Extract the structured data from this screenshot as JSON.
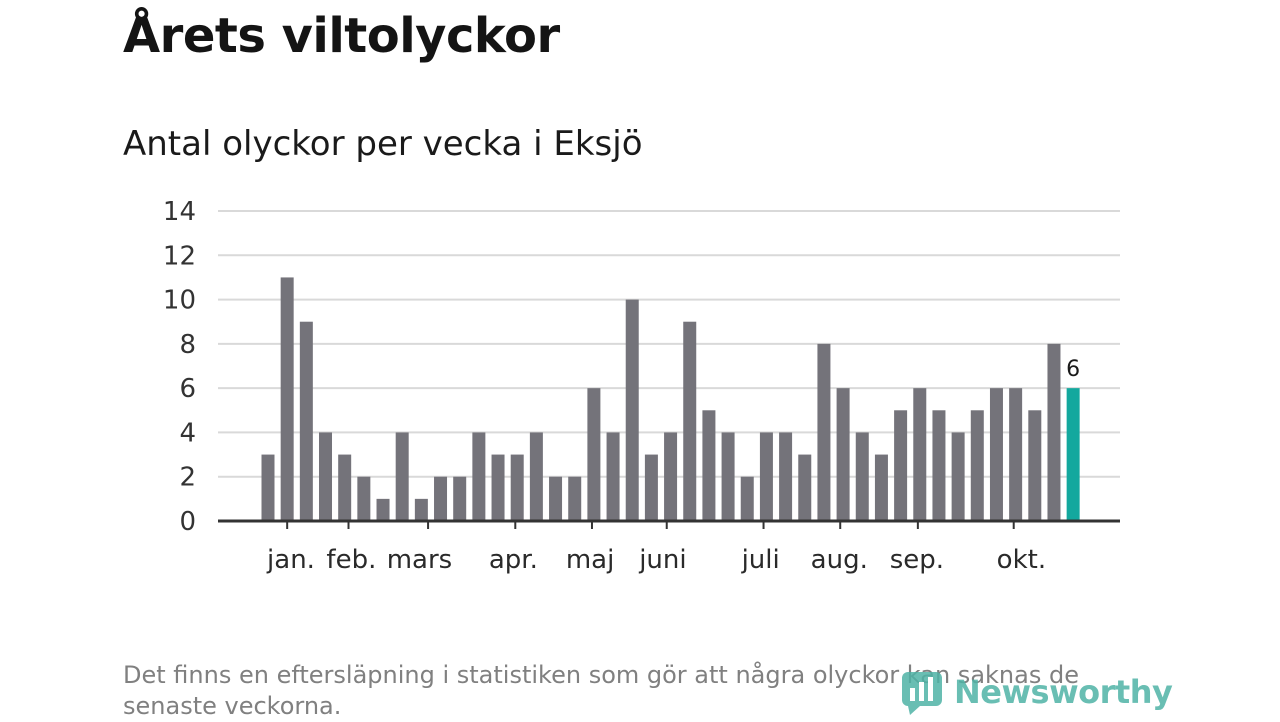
{
  "title": "Årets viltolyckor",
  "subtitle": "Antal olyckor per vecka i Eksjö",
  "footnote": "Det finns en eftersläpning i statistiken som gör att några olyckor kan saknas de senaste veckorna.",
  "brand": {
    "name": "Newsworthy",
    "icon": "newsworthy-logo-icon"
  },
  "colors": {
    "bar": "#74737a",
    "highlight": "#13a89e",
    "grid": "#d9d9d9",
    "axis": "#333333"
  },
  "chart_data": {
    "type": "bar",
    "title": "Antal olyckor per vecka i Eksjö",
    "xlabel": "",
    "ylabel": "",
    "ylim": [
      0,
      14
    ],
    "yticks": [
      "0",
      "2",
      "4",
      "6",
      "8",
      "10",
      "12",
      "14"
    ],
    "grid": true,
    "month_labels": [
      "jan.",
      "feb.",
      "mars",
      "apr.",
      "maj",
      "juni",
      "juli",
      "aug.",
      "sep.",
      "okt."
    ],
    "month_label_positions": [
      1.2,
      4.35,
      7.9,
      12.8,
      16.8,
      20.6,
      25.7,
      29.8,
      33.85,
      39.3
    ],
    "month_tick_positions": [
      1.0,
      4.2,
      8.35,
      12.9,
      16.9,
      20.8,
      25.85,
      29.85,
      33.9,
      38.9
    ],
    "values": [
      3,
      11,
      9,
      4,
      3,
      2,
      1,
      4,
      1,
      2,
      2,
      4,
      3,
      3,
      4,
      2,
      2,
      6,
      4,
      10,
      3,
      4,
      9,
      5,
      4,
      2,
      4,
      4,
      3,
      8,
      6,
      4,
      3,
      5,
      6,
      5,
      4,
      5,
      6,
      6,
      5,
      8,
      6
    ],
    "highlight_index": 42,
    "highlight_label": "6"
  }
}
